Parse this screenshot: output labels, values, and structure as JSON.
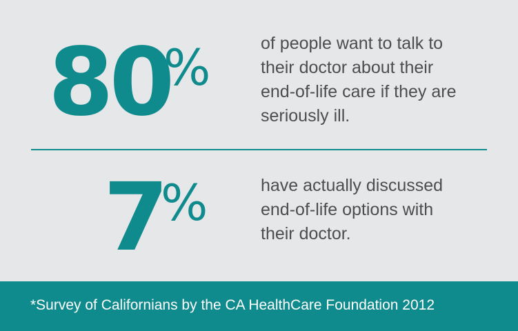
{
  "stats": [
    {
      "number": "80",
      "percent_sign": "%",
      "text": "of people want to talk to\ntheir doctor about their\nend-of-life care if they are\nseriously ill."
    },
    {
      "number": "7",
      "percent_sign": "%",
      "text": "have actually discussed\nend-of-life options with\ntheir doctor."
    }
  ],
  "footer": {
    "note": "*Survey of Californians by the CA HealthCare Foundation 2012"
  },
  "colors": {
    "accent": "#0f8b8d",
    "background": "#e6e7e8",
    "text": "#4d4d4f",
    "footer_text": "#ffffff"
  }
}
